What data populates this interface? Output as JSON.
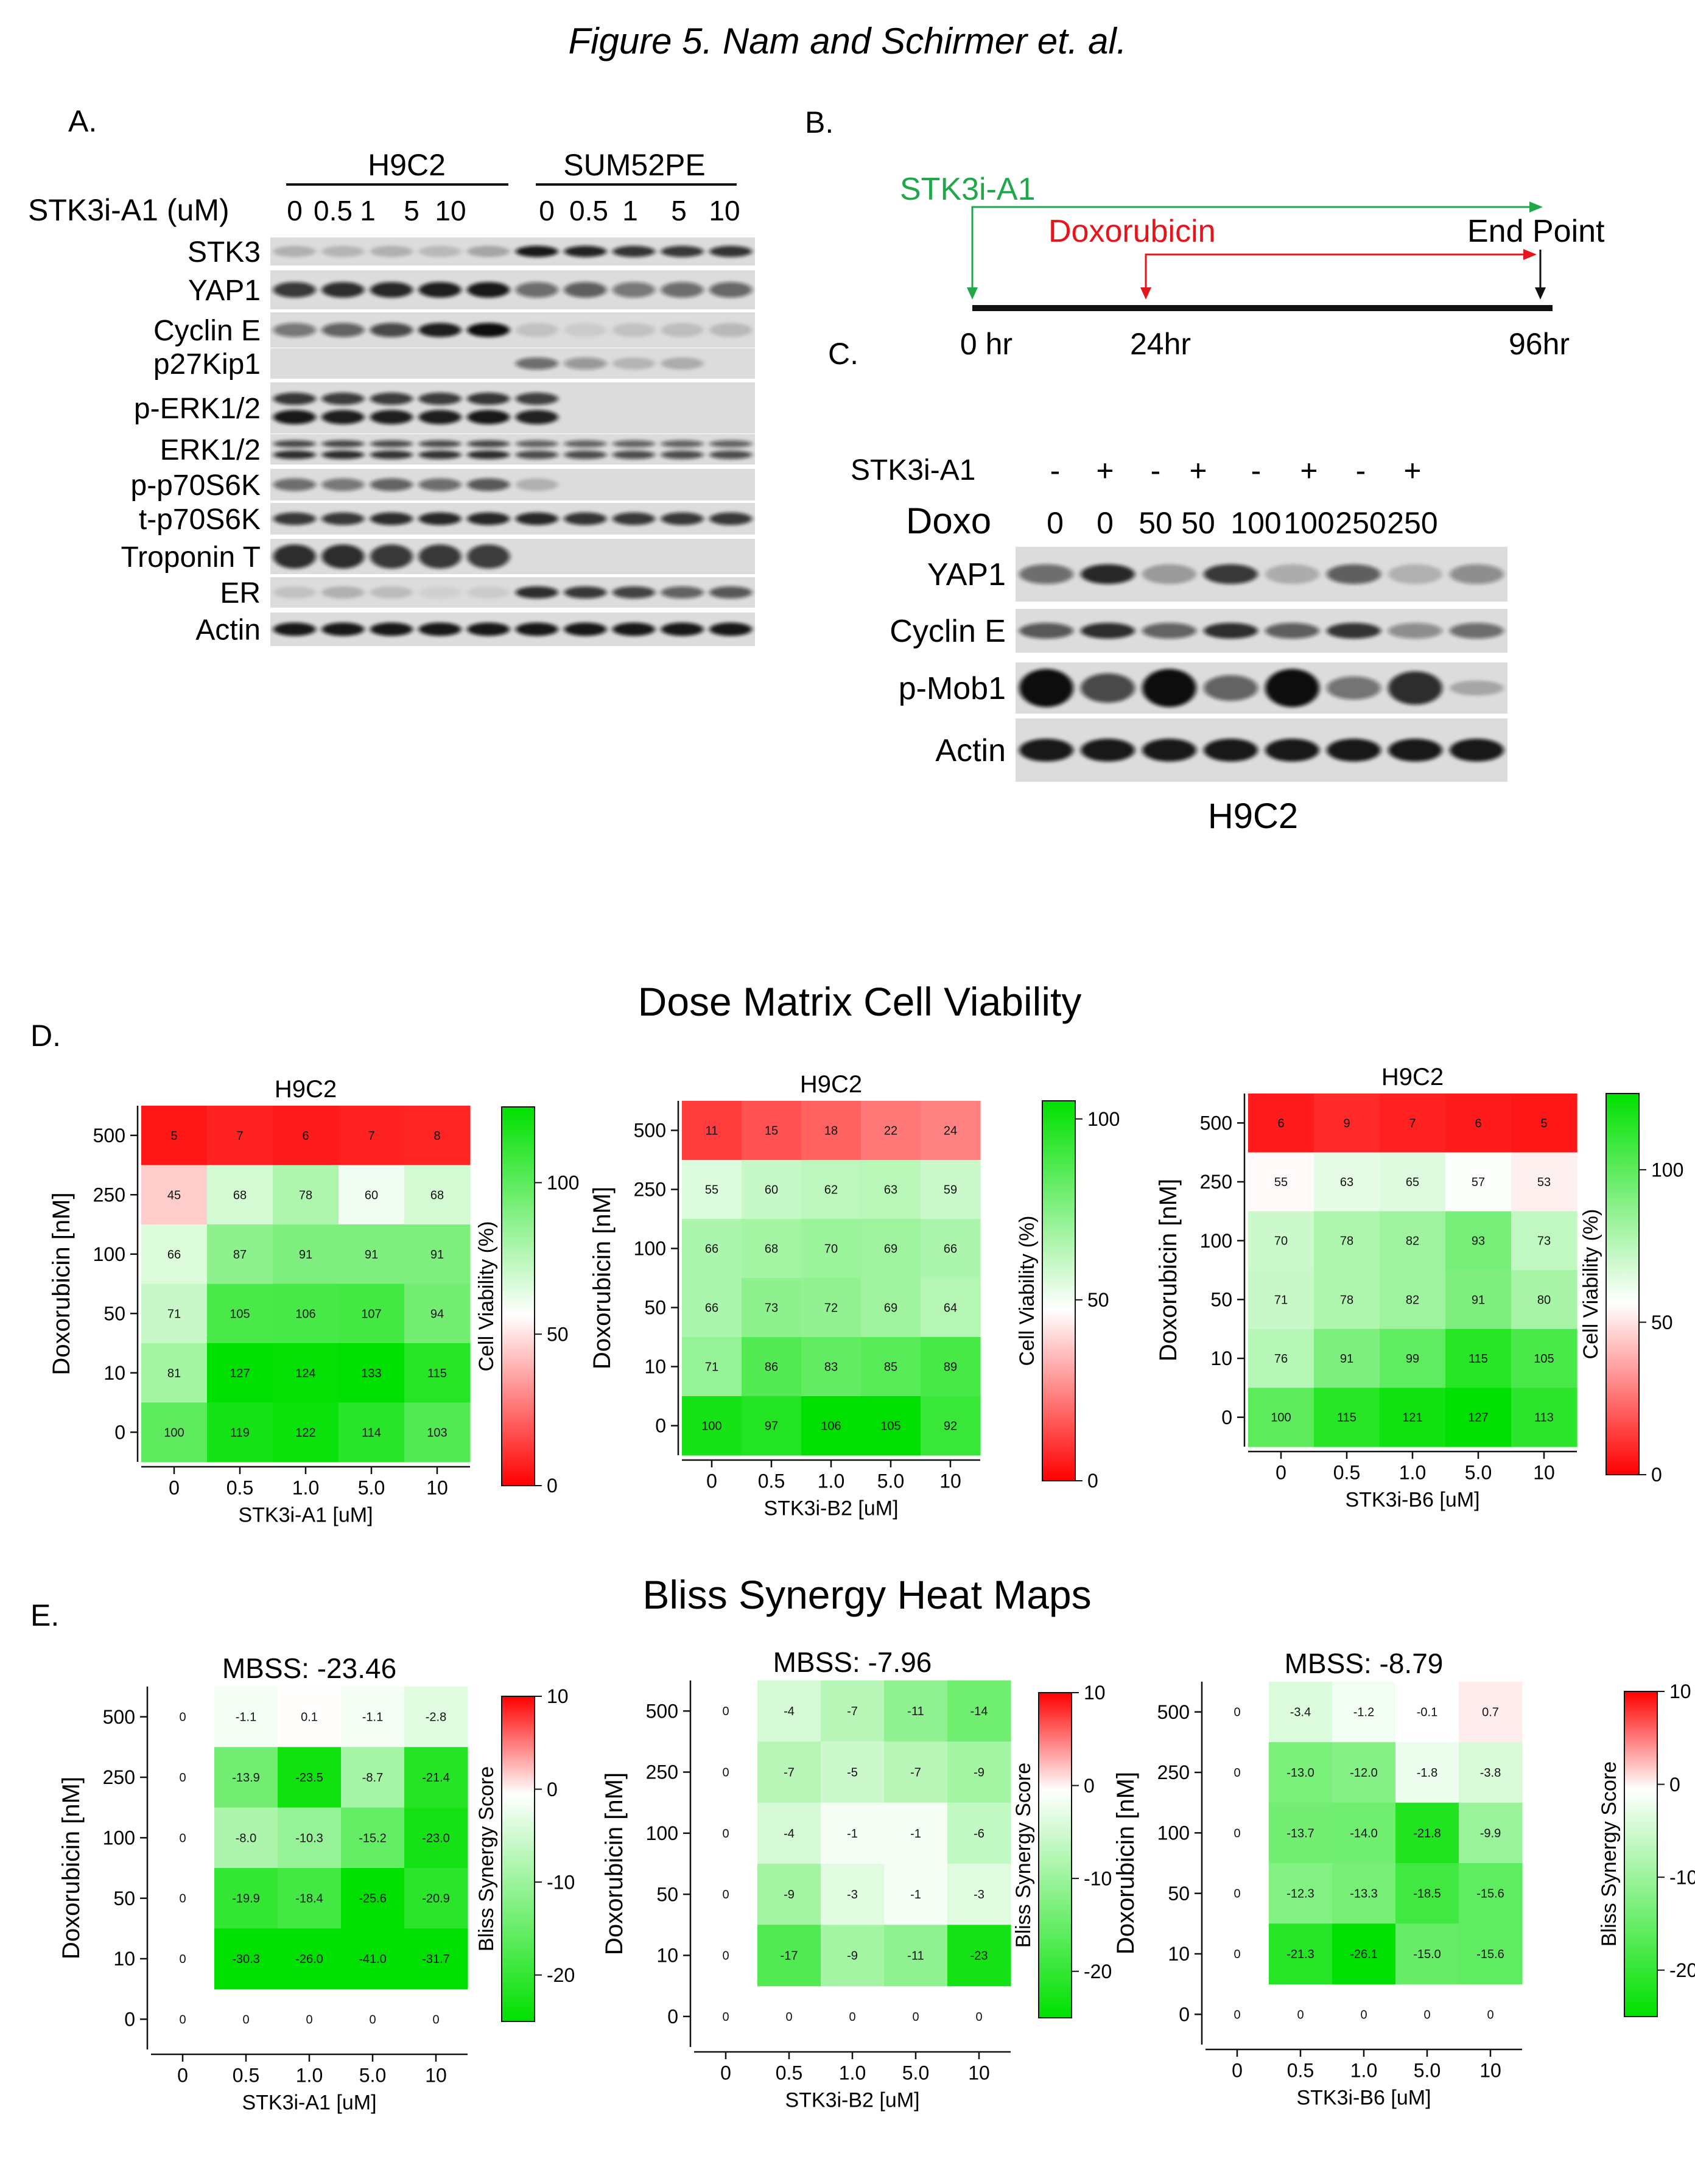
{
  "figure_title": "Figure 5. Nam and Schirmer et. al.",
  "panels": {
    "A": {
      "letter": "A.",
      "groups": [
        "H9C2",
        "SUM52PE"
      ],
      "treatment_label": "STK3i-A1 (uM)",
      "doses": [
        "0",
        "0.5",
        "1",
        "5",
        "10",
        "0",
        "0.5",
        "1",
        "5",
        "10"
      ],
      "blots": [
        {
          "label": "STK3",
          "lanes": [
            0.2,
            0.18,
            0.2,
            0.16,
            0.25,
            0.95,
            0.9,
            0.82,
            0.8,
            0.82
          ]
        },
        {
          "label": "YAP1",
          "lanes": [
            0.8,
            0.85,
            0.88,
            0.92,
            0.95,
            0.55,
            0.62,
            0.5,
            0.55,
            0.58
          ]
        },
        {
          "label": "Cyclin E",
          "lanes": [
            0.5,
            0.6,
            0.72,
            0.92,
            1.0,
            0.12,
            0.08,
            0.12,
            0.14,
            0.16
          ]
        },
        {
          "label": "p27Kip1",
          "lanes": [
            0,
            0,
            0,
            0,
            0,
            0.55,
            0.35,
            0.18,
            0.22,
            0
          ]
        },
        {
          "label": "p-ERK1/2",
          "lanes": [
            0.95,
            0.92,
            0.92,
            0.92,
            0.95,
            0.9,
            0,
            0,
            0,
            0
          ]
        },
        {
          "label": "ERK1/2",
          "lanes": [
            0.85,
            0.85,
            0.82,
            0.82,
            0.85,
            0.7,
            0.7,
            0.7,
            0.7,
            0.7
          ]
        },
        {
          "label": "p-p70S6K",
          "lanes": [
            0.55,
            0.5,
            0.6,
            0.55,
            0.65,
            0.2,
            0,
            0,
            0,
            0
          ]
        },
        {
          "label": "t-p70S6K",
          "lanes": [
            0.8,
            0.8,
            0.85,
            0.88,
            0.88,
            0.88,
            0.82,
            0.8,
            0.8,
            0.8
          ]
        },
        {
          "label": "Troponin T",
          "lanes": [
            0.85,
            0.85,
            0.8,
            0.8,
            0.78,
            0,
            0,
            0,
            0,
            0
          ]
        },
        {
          "label": "ER",
          "lanes": [
            0.12,
            0.2,
            0.15,
            0.06,
            0.08,
            0.85,
            0.8,
            0.75,
            0.6,
            0.65
          ]
        },
        {
          "label": "Actin",
          "lanes": [
            0.95,
            0.95,
            0.95,
            0.95,
            0.95,
            0.95,
            0.95,
            0.95,
            0.95,
            0.95
          ]
        }
      ]
    },
    "B": {
      "letter": "B.",
      "drug1": "STK3i-A1",
      "drug2": "Doxorubicin",
      "endpoint": "End Point",
      "timepoints": [
        "0 hr",
        "24hr",
        "96hr"
      ],
      "colors": {
        "drug1": "#1fa84a",
        "drug2": "#e8141b"
      }
    },
    "C": {
      "letter": "C.",
      "row1_label": "STK3i-A1",
      "row1_values": [
        "-",
        "+",
        "-",
        "+",
        "-",
        "+",
        "-",
        "+"
      ],
      "row2_label": "Doxo",
      "row2_values": [
        "0",
        "0",
        "50",
        "50",
        "100",
        "100",
        "250",
        "250"
      ],
      "cell_line": "H9C2",
      "blots": [
        {
          "label": "YAP1",
          "lanes": [
            0.55,
            0.88,
            0.3,
            0.8,
            0.22,
            0.62,
            0.2,
            0.4
          ]
        },
        {
          "label": "Cyclin E",
          "lanes": [
            0.65,
            0.85,
            0.6,
            0.85,
            0.62,
            0.82,
            0.4,
            0.55
          ]
        },
        {
          "label": "p-Mob1",
          "lanes": [
            1.0,
            0.72,
            1.0,
            0.6,
            1.0,
            0.52,
            0.85,
            0.25
          ]
        },
        {
          "label": "Actin",
          "lanes": [
            0.95,
            0.95,
            0.95,
            0.95,
            0.95,
            0.95,
            0.95,
            0.95
          ]
        }
      ]
    },
    "D": {
      "letter": "D.",
      "section_title": "Dose Matrix Cell Viability",
      "colorbar_label": "Cell Viability  (%)",
      "ylabel": "Doxorubicin [nM]",
      "rows": [
        "500",
        "250",
        "100",
        "50",
        "10",
        "0"
      ],
      "cols": [
        "0",
        "0.5",
        "1.0",
        "5.0",
        "10"
      ],
      "maps": [
        {
          "title": "H9C2",
          "xlabel": "STK3i-A1 [uM]",
          "cbar_ticks": [
            "100",
            "50",
            "0"
          ],
          "cbar_max": 125,
          "values": [
            [
              "5",
              "7",
              "6",
              "7",
              "8"
            ],
            [
              "45",
              "68",
              "78",
              "60",
              "68"
            ],
            [
              "66",
              "87",
              "91",
              "91",
              "91"
            ],
            [
              "71",
              "105",
              "106",
              "107",
              "94"
            ],
            [
              "81",
              "127",
              "124",
              "133",
              "115"
            ],
            [
              "100",
              "119",
              "122",
              "114",
              "103"
            ]
          ]
        },
        {
          "title": "H9C2",
          "xlabel": "STK3i-B2 [uM]",
          "cbar_ticks": [
            "100",
            "50",
            "0"
          ],
          "cbar_max": 105,
          "values": [
            [
              "11",
              "15",
              "18",
              "22",
              "24"
            ],
            [
              "55",
              "60",
              "62",
              "63",
              "59"
            ],
            [
              "66",
              "68",
              "70",
              "69",
              "66"
            ],
            [
              "66",
              "73",
              "72",
              "69",
              "64"
            ],
            [
              "71",
              "86",
              "83",
              "85",
              "89"
            ],
            [
              "100",
              "97",
              "106",
              "105",
              "92"
            ]
          ]
        },
        {
          "title": "H9C2",
          "xlabel": "STK3i-B6 [uM]",
          "cbar_ticks": [
            "100",
            "50",
            "0"
          ],
          "cbar_max": 125,
          "values": [
            [
              "6",
              "9",
              "7",
              "6",
              "5"
            ],
            [
              "55",
              "63",
              "65",
              "57",
              "53"
            ],
            [
              "70",
              "78",
              "82",
              "93",
              "73"
            ],
            [
              "71",
              "78",
              "82",
              "91",
              "80"
            ],
            [
              "76",
              "91",
              "99",
              "115",
              "105"
            ],
            [
              "100",
              "115",
              "121",
              "127",
              "113"
            ]
          ]
        }
      ]
    },
    "E": {
      "letter": "E.",
      "section_title": "Bliss Synergy Heat Maps",
      "colorbar_label": "Bliss Synergy Score",
      "ylabel": "Doxorubicin [nM]",
      "rows": [
        "500",
        "250",
        "100",
        "50",
        "10",
        "0"
      ],
      "cols": [
        "0",
        "0.5",
        "1.0",
        "5.0",
        "10"
      ],
      "cbar_ticks": [
        "10",
        "0",
        "-10",
        "-20"
      ],
      "maps": [
        {
          "title": "MBSS: -23.46",
          "xlabel": "STK3i-A1 [uM]",
          "values": [
            [
              "0",
              "-1.1",
              "0.1",
              "-1.1",
              "-2.8"
            ],
            [
              "0",
              "-13.9",
              "-23.5",
              "-8.7",
              "-21.4"
            ],
            [
              "0",
              "-8.0",
              "-10.3",
              "-15.2",
              "-23.0"
            ],
            [
              "0",
              "-19.9",
              "-18.4",
              "-25.6",
              "-20.9"
            ],
            [
              "0",
              "-30.3",
              "-26.0",
              "-41.0",
              "-31.7"
            ],
            [
              "0",
              "0",
              "0",
              "0",
              "0"
            ]
          ]
        },
        {
          "title": "MBSS: -7.96",
          "xlabel": "STK3i-B2 [uM]",
          "values": [
            [
              "0",
              "-4",
              "-7",
              "-11",
              "-14"
            ],
            [
              "0",
              "-7",
              "-5",
              "-7",
              "-9"
            ],
            [
              "0",
              "-4",
              "-1",
              "-1",
              "-6"
            ],
            [
              "0",
              "-9",
              "-3",
              "-1",
              "-3"
            ],
            [
              "0",
              "-17",
              "-9",
              "-11",
              "-23"
            ],
            [
              "0",
              "0",
              "0",
              "0",
              "0"
            ]
          ]
        },
        {
          "title": "MBSS: -8.79",
          "xlabel": "STK3i-B6 [uM]",
          "values": [
            [
              "0",
              "-3.4",
              "-1.2",
              "-0.1",
              "0.7"
            ],
            [
              "0",
              "-13.0",
              "-12.0",
              "-1.8",
              "-3.8"
            ],
            [
              "0",
              "-13.7",
              "-14.0",
              "-21.8",
              "-9.9"
            ],
            [
              "0",
              "-12.3",
              "-13.3",
              "-18.5",
              "-15.6"
            ],
            [
              "0",
              "-21.3",
              "-26.1",
              "-15.0",
              "-15.6"
            ],
            [
              "0",
              "0",
              "0",
              "0",
              "0"
            ]
          ]
        }
      ]
    }
  }
}
